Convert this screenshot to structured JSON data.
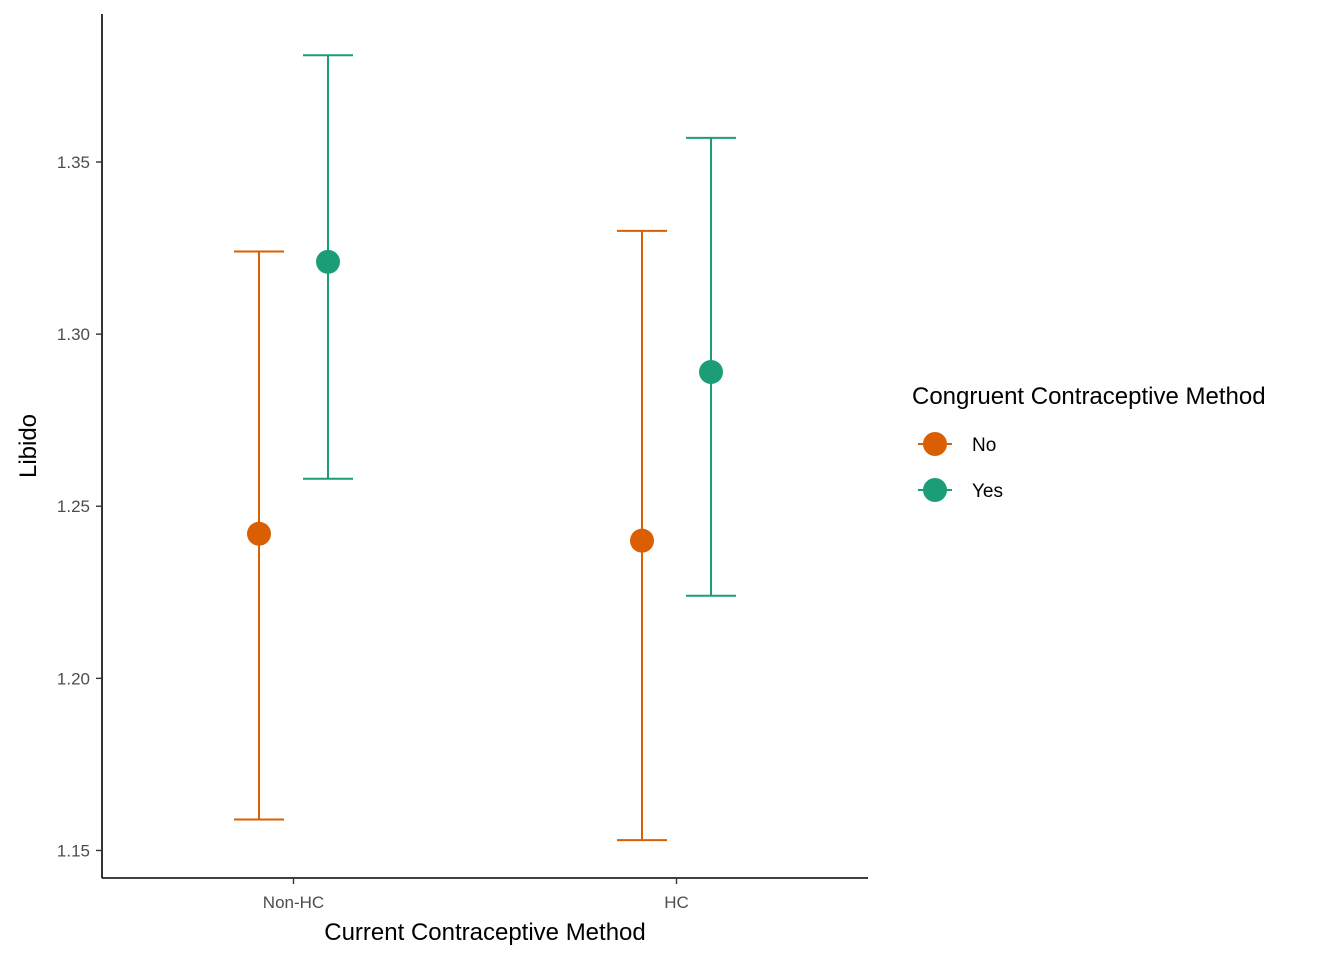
{
  "chart_data": {
    "type": "scatter",
    "title": "",
    "xlabel": "Current Contraceptive Method",
    "ylabel": "Libido",
    "categories": [
      "Non-HC",
      "HC"
    ],
    "ylim": [
      1.142,
      1.393
    ],
    "yticks": [
      "1.15",
      "1.20",
      "1.25",
      "1.30",
      "1.35"
    ],
    "grid": false,
    "legend": {
      "title": "Congruent Contraceptive Method",
      "placement": "right"
    },
    "series": [
      {
        "name": "No",
        "color": "#d95f02",
        "values": [
          1.242,
          1.24
        ],
        "lower": [
          1.159,
          1.153
        ],
        "upper": [
          1.324,
          1.33
        ]
      },
      {
        "name": "Yes",
        "color": "#1b9e77",
        "values": [
          1.321,
          1.289
        ],
        "lower": [
          1.258,
          1.224
        ],
        "upper": [
          1.381,
          1.357
        ]
      }
    ]
  }
}
